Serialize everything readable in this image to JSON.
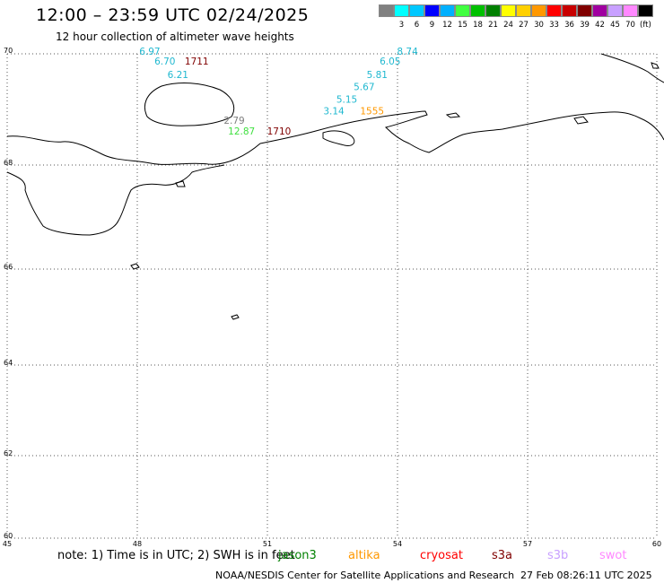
{
  "header": {
    "title": "12:00 – 23:59 UTC 02/24/2025",
    "subtitle": "12 hour collection of altimeter wave heights"
  },
  "legend": {
    "unit": "(ft)",
    "items": [
      {
        "label": "",
        "color": "#808080"
      },
      {
        "label": "3",
        "color": "#00ffff"
      },
      {
        "label": "6",
        "color": "#00c8ff"
      },
      {
        "label": "9",
        "color": "#0000ff"
      },
      {
        "label": "12",
        "color": "#00b0ff"
      },
      {
        "label": "15",
        "color": "#40ff40"
      },
      {
        "label": "18",
        "color": "#00c000"
      },
      {
        "label": "21",
        "color": "#008000"
      },
      {
        "label": "24",
        "color": "#ffff00"
      },
      {
        "label": "27",
        "color": "#ffd000"
      },
      {
        "label": "30",
        "color": "#ff9800"
      },
      {
        "label": "33",
        "color": "#ff0000"
      },
      {
        "label": "36",
        "color": "#c80000"
      },
      {
        "label": "39",
        "color": "#800000"
      },
      {
        "label": "42",
        "color": "#a000a0"
      },
      {
        "label": "45",
        "color": "#c8a0ff"
      },
      {
        "label": "70",
        "color": "#ff88ff"
      },
      {
        "label": "",
        "color": "#000000"
      }
    ]
  },
  "map": {
    "lat_labels": [
      "70",
      "68",
      "66",
      "64",
      "62",
      "60"
    ],
    "lon_labels": [
      "45",
      "48",
      "51",
      "54",
      "57",
      "60"
    ],
    "observations": [
      {
        "text": "6.97",
        "lon": 48.05,
        "lat": 69.98,
        "color": "#20b8d0"
      },
      {
        "text": "6.70",
        "lon": 48.4,
        "lat": 69.78,
        "color": "#20b8d0"
      },
      {
        "text": "1711",
        "lon": 49.1,
        "lat": 69.78,
        "color": "#800000"
      },
      {
        "text": "6.21",
        "lon": 48.7,
        "lat": 69.5,
        "color": "#20b8d0"
      },
      {
        "text": "8.74",
        "lon": 54.0,
        "lat": 69.98,
        "color": "#20b8d0"
      },
      {
        "text": "6.05",
        "lon": 53.6,
        "lat": 69.78,
        "color": "#20b8d0"
      },
      {
        "text": "5.81",
        "lon": 53.3,
        "lat": 69.5,
        "color": "#20b8d0"
      },
      {
        "text": "5.67",
        "lon": 53.0,
        "lat": 69.25,
        "color": "#20b8d0"
      },
      {
        "text": "5.15",
        "lon": 52.6,
        "lat": 68.99,
        "color": "#20b8d0"
      },
      {
        "text": "3.14",
        "lon": 52.3,
        "lat": 68.75,
        "color": "#20b8d0"
      },
      {
        "text": "1555",
        "lon": 53.15,
        "lat": 68.75,
        "color": "#ff9800"
      },
      {
        "text": "2.79",
        "lon": 50.0,
        "lat": 68.56,
        "color": "#808080"
      },
      {
        "text": "12.87",
        "lon": 50.1,
        "lat": 68.33,
        "color": "#40e040"
      },
      {
        "text": "1710",
        "lon": 51.0,
        "lat": 68.33,
        "color": "#800000"
      }
    ]
  },
  "footer": {
    "note": "note: 1) Time is in UTC; 2) SWH is in feet",
    "satellites": [
      {
        "name": "jason3",
        "color": "#008000"
      },
      {
        "name": "altika",
        "color": "#ff9800"
      },
      {
        "name": "cryosat",
        "color": "#ff0000"
      },
      {
        "name": "s3a",
        "color": "#800000"
      },
      {
        "name": "s3b",
        "color": "#c8a0ff"
      },
      {
        "name": "swot",
        "color": "#ff88ff"
      }
    ],
    "credit": "NOAA/NESDIS Center for Satellite Applications and Research",
    "timestamp": "27 Feb 08:26:11 UTC 2025"
  }
}
